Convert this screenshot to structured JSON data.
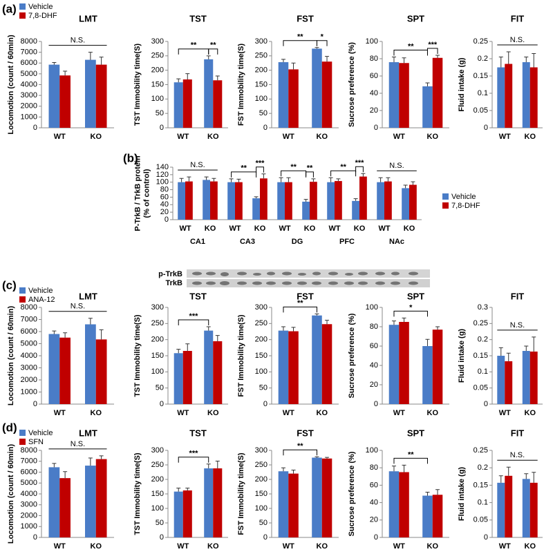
{
  "chart_data": [
    {
      "type": "bar",
      "panel": "(a)",
      "title": "LMT",
      "ylabel": "Locomotion (count / 60min)",
      "categories": [
        "WT",
        "KO"
      ],
      "legend": "upper left",
      "series": [
        {
          "name": "Vehicle",
          "color": "#4a7cc7",
          "values": [
            5850,
            6300
          ],
          "errors": [
            200,
            700
          ]
        },
        {
          "name": "7,8-DHF",
          "color": "#c00000",
          "values": [
            4850,
            5850
          ],
          "errors": [
            400,
            700
          ]
        }
      ],
      "ylim": [
        0,
        8000
      ],
      "yticks": [
        0,
        1000,
        2000,
        3000,
        4000,
        5000,
        6000,
        7000,
        8000
      ],
      "annotations": [
        "N.S."
      ]
    },
    {
      "type": "bar",
      "title": "TST",
      "ylabel": "TST Immobility time(S)",
      "categories": [
        "WT",
        "KO"
      ],
      "series": [
        {
          "color": "#4a7cc7",
          "values": [
            158,
            238
          ],
          "errors": [
            12,
            12
          ]
        },
        {
          "color": "#c00000",
          "values": [
            168,
            165
          ],
          "errors": [
            20,
            15
          ]
        }
      ],
      "ylim": [
        0,
        300
      ],
      "yticks": [
        0,
        50,
        100,
        150,
        200,
        250,
        300
      ],
      "annotations": [
        "**",
        "**"
      ]
    },
    {
      "type": "bar",
      "title": "FST",
      "ylabel": "FST Immobility time(S)",
      "categories": [
        "WT",
        "KO"
      ],
      "series": [
        {
          "color": "#4a7cc7",
          "values": [
            228,
            275
          ],
          "errors": [
            10,
            4
          ]
        },
        {
          "color": "#c00000",
          "values": [
            203,
            230
          ],
          "errors": [
            22,
            18
          ]
        }
      ],
      "ylim": [
        0,
        300
      ],
      "yticks": [
        0,
        50,
        100,
        150,
        200,
        250,
        300
      ],
      "annotations": [
        "**",
        "*"
      ]
    },
    {
      "type": "bar",
      "title": "SPT",
      "ylabel": "Sucrose preference (%)",
      "categories": [
        "WT",
        "KO"
      ],
      "series": [
        {
          "color": "#4a7cc7",
          "values": [
            76,
            48
          ],
          "errors": [
            6,
            4
          ]
        },
        {
          "color": "#c00000",
          "values": [
            75,
            81
          ],
          "errors": [
            6,
            3
          ]
        }
      ],
      "ylim": [
        0,
        100
      ],
      "yticks": [
        0,
        20,
        40,
        60,
        80,
        100
      ],
      "annotations": [
        "**",
        "***"
      ]
    },
    {
      "type": "bar",
      "title": "FIT",
      "ylabel": "Fluid intake (g)",
      "categories": [
        "WT",
        "KO"
      ],
      "series": [
        {
          "color": "#4a7cc7",
          "values": [
            0.175,
            0.19
          ],
          "errors": [
            0.03,
            0.015
          ]
        },
        {
          "color": "#c00000",
          "values": [
            0.185,
            0.175
          ],
          "errors": [
            0.035,
            0.04
          ]
        }
      ],
      "ylim": [
        0,
        0.25
      ],
      "yticks": [
        0,
        0.05,
        0.1,
        0.15,
        0.2,
        0.25
      ],
      "annotations": [
        "N.S."
      ]
    },
    {
      "type": "bar",
      "panel": "(b)",
      "ylabel": [
        "P-TrkB / TrkB  protein",
        "(% of control)"
      ],
      "legend": "right",
      "categories": [
        "WT",
        "KO",
        "WT",
        "KO",
        "WT",
        "KO",
        "WT",
        "KO",
        "WT",
        "KO"
      ],
      "groups": [
        "CA1",
        "CA3",
        "DG",
        "PFC",
        "NAc"
      ],
      "series": [
        {
          "name": "Vehicle",
          "color": "#4a7cc7",
          "values": [
            100,
            106,
            100,
            57,
            100,
            48,
            100,
            50,
            100,
            84
          ],
          "errors": [
            10,
            8,
            9,
            4,
            12,
            6,
            12,
            6,
            12,
            8
          ]
        },
        {
          "name": "7,8-DHF",
          "color": "#c00000",
          "values": [
            102,
            102,
            100,
            110,
            100,
            101,
            103,
            115,
            102,
            93
          ],
          "errors": [
            12,
            8,
            8,
            12,
            12,
            8,
            6,
            8,
            10,
            8
          ]
        }
      ],
      "ylim": [
        0,
        140
      ],
      "yticks": [
        0,
        20,
        40,
        60,
        80,
        100,
        120,
        140
      ],
      "annotations": [
        "N.S.",
        "**",
        "***",
        "**",
        "**",
        "**",
        "***",
        "N.S."
      ]
    },
    {
      "type": "bar",
      "panel": "(c)",
      "title": "LMT",
      "ylabel": "Locomotion (count / 60min)",
      "categories": [
        "WT",
        "KO"
      ],
      "legend": "upper left",
      "series": [
        {
          "name": "Vehicle",
          "color": "#4a7cc7",
          "values": [
            5800,
            6600
          ],
          "errors": [
            250,
            500
          ]
        },
        {
          "name": "ANA-12",
          "color": "#c00000",
          "values": [
            5500,
            5350
          ],
          "errors": [
            400,
            800
          ]
        }
      ],
      "ylim": [
        0,
        8000
      ],
      "yticks": [
        0,
        1000,
        2000,
        3000,
        4000,
        5000,
        6000,
        7000,
        8000
      ],
      "annotations": [
        "N.S."
      ]
    },
    {
      "type": "bar",
      "title": "TST",
      "ylabel": "TST Immobility time(S)",
      "categories": [
        "WT",
        "KO"
      ],
      "series": [
        {
          "color": "#4a7cc7",
          "values": [
            158,
            228
          ],
          "errors": [
            12,
            12
          ]
        },
        {
          "color": "#c00000",
          "values": [
            165,
            195
          ],
          "errors": [
            22,
            18
          ]
        }
      ],
      "ylim": [
        0,
        300
      ],
      "yticks": [
        0,
        50,
        100,
        150,
        200,
        250,
        300
      ],
      "annotations": [
        "***"
      ]
    },
    {
      "type": "bar",
      "title": "FST",
      "ylabel": "FST Immobility time(S)",
      "categories": [
        "WT",
        "KO"
      ],
      "series": [
        {
          "color": "#4a7cc7",
          "values": [
            228,
            275
          ],
          "errors": [
            12,
            5
          ]
        },
        {
          "color": "#c00000",
          "values": [
            226,
            248
          ],
          "errors": [
            12,
            12
          ]
        }
      ],
      "ylim": [
        0,
        300
      ],
      "yticks": [
        0,
        50,
        100,
        150,
        200,
        250,
        300
      ],
      "annotations": [
        "**"
      ]
    },
    {
      "type": "bar",
      "title": "SPT",
      "ylabel": "Sucrose preference (%)",
      "categories": [
        "WT",
        "KO"
      ],
      "series": [
        {
          "color": "#4a7cc7",
          "values": [
            82,
            60
          ],
          "errors": [
            4,
            7
          ]
        },
        {
          "color": "#c00000",
          "values": [
            85,
            77
          ],
          "errors": [
            4,
            3
          ]
        }
      ],
      "ylim": [
        0,
        100
      ],
      "yticks": [
        0,
        20,
        40,
        60,
        80,
        100
      ],
      "annotations": [
        "*"
      ]
    },
    {
      "type": "bar",
      "title": "FIT",
      "ylabel": "Fluid intake (g)",
      "categories": [
        "WT",
        "KO"
      ],
      "series": [
        {
          "color": "#4a7cc7",
          "values": [
            0.15,
            0.165
          ],
          "errors": [
            0.025,
            0.015
          ]
        },
        {
          "color": "#c00000",
          "values": [
            0.133,
            0.163
          ],
          "errors": [
            0.025,
            0.045
          ]
        }
      ],
      "ylim": [
        0,
        0.3
      ],
      "yticks": [
        0,
        0.05,
        0.1,
        0.15,
        0.2,
        0.25,
        0.3
      ],
      "annotations": [
        "N.S."
      ]
    },
    {
      "type": "bar",
      "panel": "(d)",
      "title": "LMT",
      "ylabel": "Locomotion (count / 60min)",
      "categories": [
        "WT",
        "KO"
      ],
      "legend": "upper left",
      "series": [
        {
          "name": "Vehicle",
          "color": "#4a7cc7",
          "values": [
            6450,
            6600
          ],
          "errors": [
            350,
            700
          ]
        },
        {
          "name": "SFN",
          "color": "#c00000",
          "values": [
            5450,
            7200
          ],
          "errors": [
            600,
            300
          ]
        }
      ],
      "ylim": [
        0,
        8000
      ],
      "yticks": [
        0,
        1000,
        2000,
        3000,
        4000,
        5000,
        6000,
        7000,
        8000
      ],
      "annotations": [
        "N.S."
      ]
    },
    {
      "type": "bar",
      "title": "TST",
      "ylabel": "TST Immobility time(S)",
      "categories": [
        "WT",
        "KO"
      ],
      "series": [
        {
          "color": "#4a7cc7",
          "values": [
            158,
            238
          ],
          "errors": [
            12,
            15
          ]
        },
        {
          "color": "#c00000",
          "values": [
            162,
            238
          ],
          "errors": [
            8,
            25
          ]
        }
      ],
      "ylim": [
        0,
        300
      ],
      "yticks": [
        0,
        50,
        100,
        150,
        200,
        250,
        300
      ],
      "annotations": [
        "***"
      ]
    },
    {
      "type": "bar",
      "title": "FST",
      "ylabel": "FST Immobility time(S)",
      "categories": [
        "WT",
        "KO"
      ],
      "series": [
        {
          "color": "#4a7cc7",
          "values": [
            228,
            275
          ],
          "errors": [
            12,
            3
          ]
        },
        {
          "color": "#c00000",
          "values": [
            220,
            272
          ],
          "errors": [
            12,
            4
          ]
        }
      ],
      "ylim": [
        0,
        300
      ],
      "yticks": [
        0,
        50,
        100,
        150,
        200,
        250,
        300
      ],
      "annotations": [
        "**"
      ]
    },
    {
      "type": "bar",
      "title": "SPT",
      "ylabel": "Sucrose preference (%)",
      "categories": [
        "WT",
        "KO"
      ],
      "series": [
        {
          "color": "#4a7cc7",
          "values": [
            76,
            48
          ],
          "errors": [
            6,
            4
          ]
        },
        {
          "color": "#c00000",
          "values": [
            75,
            49
          ],
          "errors": [
            8,
            6
          ]
        }
      ],
      "ylim": [
        0,
        100
      ],
      "yticks": [
        0,
        20,
        40,
        60,
        80,
        100
      ],
      "annotations": [
        "**"
      ]
    },
    {
      "type": "bar",
      "title": "FIT",
      "ylabel": "Fluid intake (g)",
      "categories": [
        "WT",
        "KO"
      ],
      "series": [
        {
          "color": "#4a7cc7",
          "values": [
            0.157,
            0.168
          ],
          "errors": [
            0.02,
            0.015
          ]
        },
        {
          "color": "#c00000",
          "values": [
            0.177,
            0.157
          ],
          "errors": [
            0.025,
            0.03
          ]
        }
      ],
      "ylim": [
        0,
        0.25
      ],
      "yticks": [
        0,
        0.05,
        0.1,
        0.15,
        0.2,
        0.25
      ],
      "annotations": [
        "N.S."
      ]
    }
  ],
  "blot": {
    "labels": [
      "p-TrkB",
      "TrkB"
    ]
  }
}
